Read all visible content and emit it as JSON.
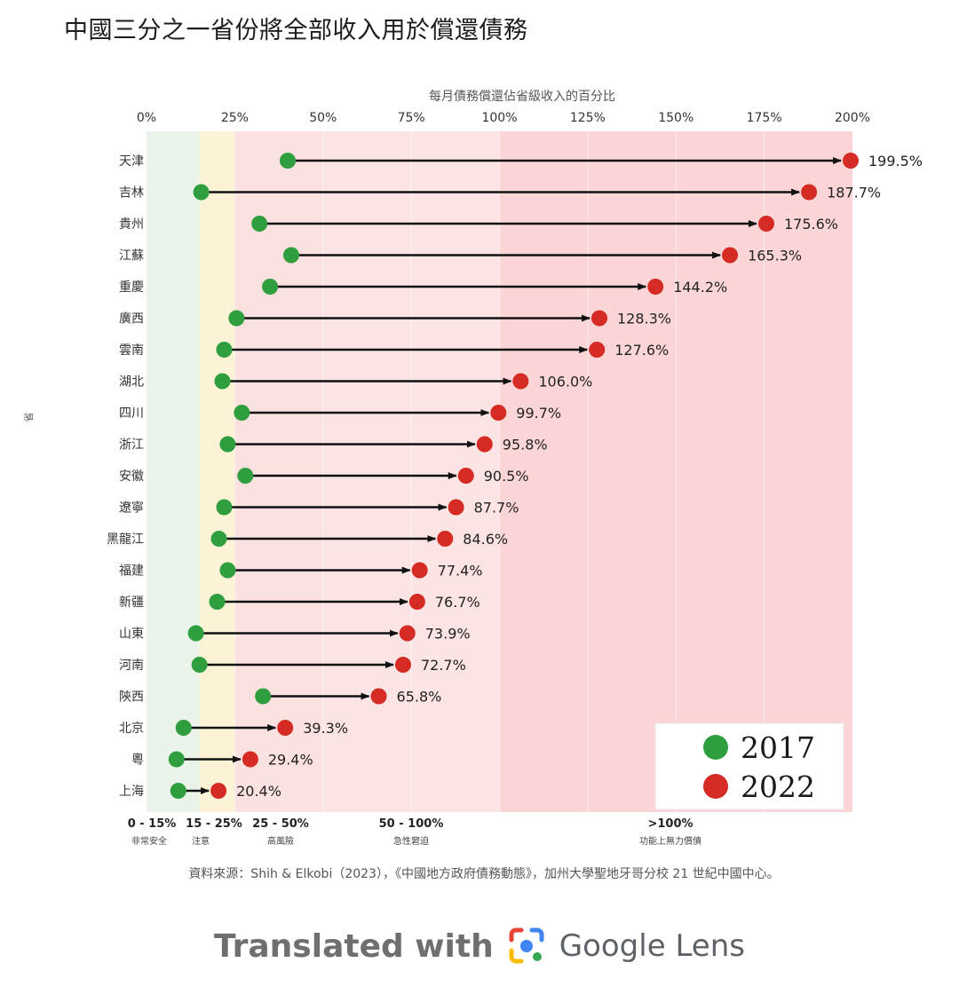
{
  "title": "中國三分之一省份將全部收入用於償還債務",
  "chart_data": {
    "type": "dumbbell",
    "xlabel": "每月債務償還佔省級收入的百分比",
    "ylabel": "省",
    "x_ticks": [
      0,
      25,
      50,
      75,
      100,
      125,
      150,
      175,
      200
    ],
    "x_tick_labels": [
      "0%",
      "25%",
      "50%",
      "75%",
      "100%",
      "125%",
      "150%",
      "175%",
      "200%"
    ],
    "xlim": [
      0,
      200
    ],
    "categories": [
      "天津",
      "吉林",
      "貴州",
      "江蘇",
      "重慶",
      "廣西",
      "雲南",
      "湖北",
      "四川",
      "浙江",
      "安徽",
      "遼寧",
      "黑龍江",
      "福建",
      "新疆",
      "山東",
      "河南",
      "陝西",
      "北京",
      "粵",
      "上海"
    ],
    "series": [
      {
        "name": "2017",
        "color": "#2e9e3e",
        "values": [
          40,
          15.5,
          32,
          41,
          35,
          25.5,
          22,
          21.5,
          27,
          23,
          28,
          22,
          20.5,
          23,
          20,
          14,
          15,
          33,
          10.5,
          8.5,
          9
        ]
      },
      {
        "name": "2022",
        "color": "#d52b24",
        "values": [
          199.5,
          187.7,
          175.6,
          165.3,
          144.2,
          128.3,
          127.6,
          106.0,
          99.7,
          95.8,
          90.5,
          87.7,
          84.6,
          77.4,
          76.7,
          73.9,
          72.7,
          65.8,
          39.3,
          29.4,
          20.4
        ]
      }
    ],
    "value_labels": [
      "199.5%",
      "187.7%",
      "175.6%",
      "165.3%",
      "144.2%",
      "128.3%",
      "127.6%",
      "106.0%",
      "99.7%",
      "95.8%",
      "90.5%",
      "87.7%",
      "84.6%",
      "77.4%",
      "76.7%",
      "73.9%",
      "72.7%",
      "65.8%",
      "39.3%",
      "29.4%",
      "20.4%"
    ],
    "bands": [
      {
        "from": 0,
        "to": 15,
        "color": "#eaf4ea",
        "range_label": "0 - 15%",
        "desc": "非常安全"
      },
      {
        "from": 15,
        "to": 25,
        "color": "#fcf3d6",
        "range_label": "15 - 25%",
        "desc": "注意"
      },
      {
        "from": 25,
        "to": 50,
        "color": "#fbe1e0",
        "range_label": "25 - 50%",
        "desc": "高風險"
      },
      {
        "from": 50,
        "to": 100,
        "color": "#fce4e4",
        "range_label": "50 - 100%",
        "desc": "急性窘迫"
      },
      {
        "from": 100,
        "to": 200,
        "color": "#fcd6d7",
        "range_label": ">100%",
        "desc": "功能上無力償債"
      }
    ],
    "legend": {
      "position": "bottom-right",
      "entries": [
        "2017",
        "2022"
      ]
    }
  },
  "source": "資料來源：Shih & Elkobi（2023），《中國地方政府債務動態》，加州大學聖地牙哥分校 21 世紀中國中心。",
  "footer": {
    "lead": "Translated with",
    "brand": "Google Lens"
  }
}
